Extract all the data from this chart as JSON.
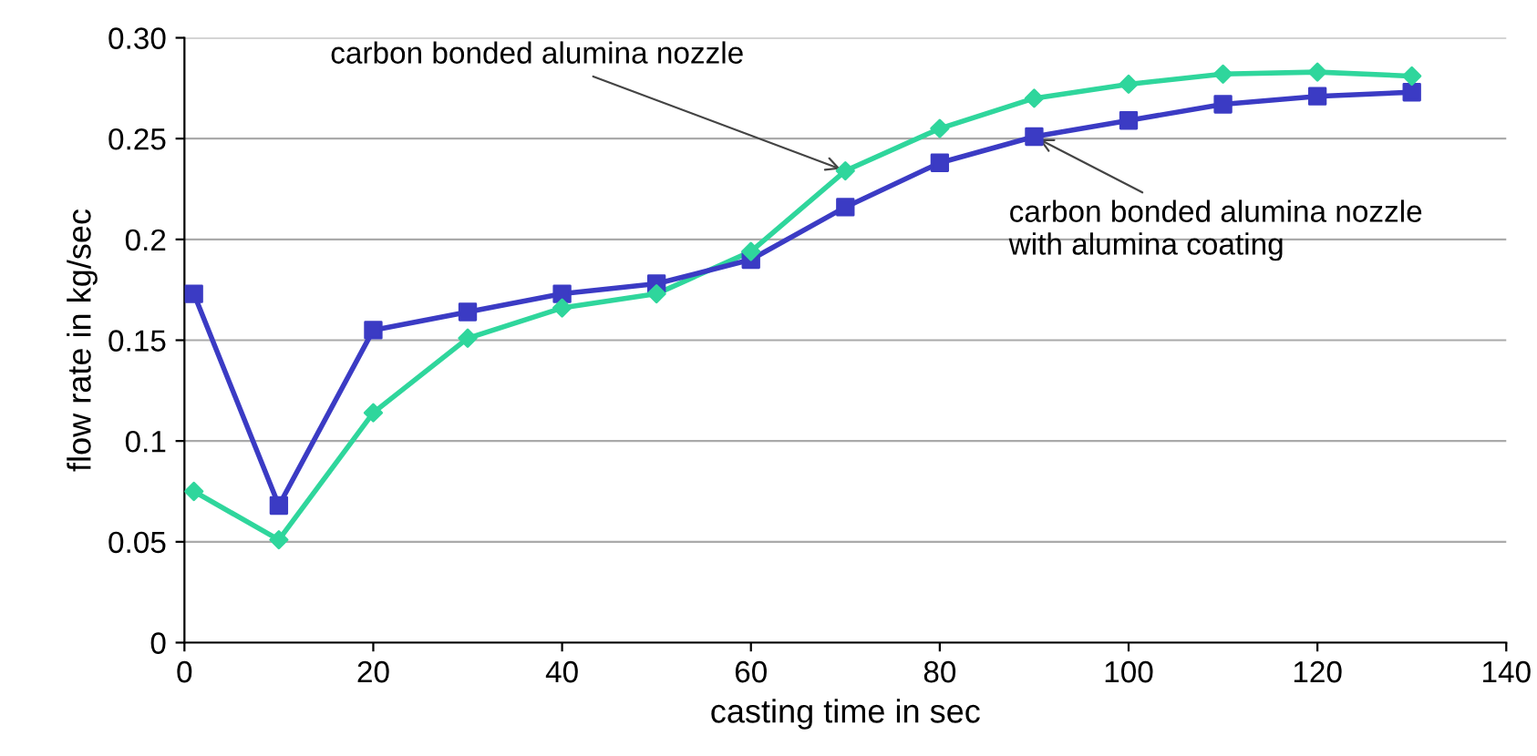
{
  "chart_data": {
    "type": "line",
    "xlabel": "casting time in sec",
    "ylabel": "flow rate in kg/sec",
    "x": [
      1,
      10,
      20,
      30,
      40,
      50,
      60,
      70,
      80,
      90,
      100,
      110,
      120,
      130
    ],
    "series": [
      {
        "color": "#2fd69c",
        "marker": "diamond",
        "values": [
          0.075,
          0.051,
          0.114,
          0.151,
          0.166,
          0.173,
          0.194,
          0.234,
          0.255,
          0.27,
          0.277,
          0.282,
          0.283,
          0.281
        ]
      },
      {
        "color": "#3b3bc4",
        "marker": "square",
        "values": [
          0.173,
          0.068,
          0.155,
          0.164,
          0.173,
          0.178,
          0.19,
          0.216,
          0.238,
          0.251,
          0.259,
          0.267,
          0.271,
          0.273
        ]
      }
    ],
    "annotations": [
      {
        "text": "carbon bonded alumina nozzle",
        "x": 70,
        "y": 0.234
      },
      {
        "text": "carbon bonded alumina nozzle\nwith alumina coating",
        "x": 90,
        "y": 0.251
      }
    ],
    "xlim": [
      0,
      140
    ],
    "xticks": [
      0,
      20,
      40,
      60,
      80,
      100,
      120,
      140
    ],
    "ylim": [
      0,
      0.3
    ],
    "yticks": [
      {
        "value": 0,
        "label": "0"
      },
      {
        "value": 0.05,
        "label": "0.05"
      },
      {
        "value": 0.1,
        "label": "0.1"
      },
      {
        "value": 0.15,
        "label": "0.15"
      },
      {
        "value": 0.2,
        "label": "0.2"
      },
      {
        "value": 0.25,
        "label": "0.25"
      },
      {
        "value": 0.3,
        "label": "0.30"
      }
    ],
    "grid": "y",
    "line_style": "solid"
  }
}
